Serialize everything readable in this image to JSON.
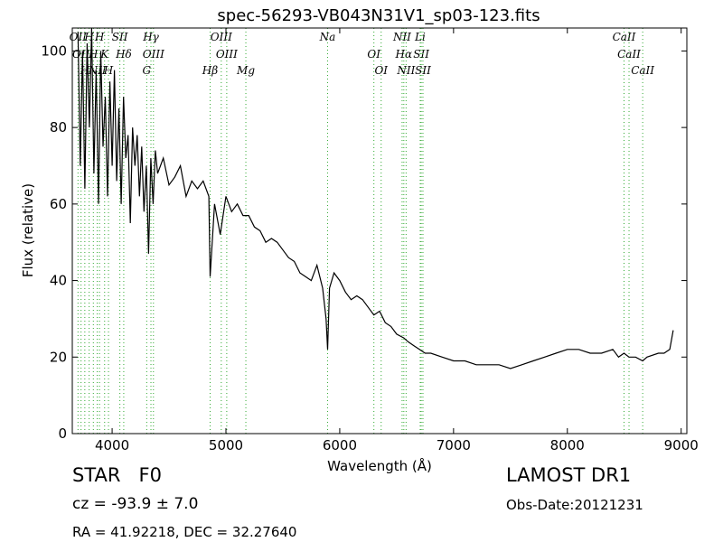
{
  "chart_data": {
    "type": "line",
    "title": "spec-56293-VB043N31V1_sp03-123.fits",
    "xlabel": "Wavelength (Å)",
    "ylabel": "Flux (relative)",
    "xlim": [
      3650,
      9050
    ],
    "ylim": [
      0,
      106
    ],
    "xticks": [
      4000,
      5000,
      6000,
      7000,
      8000,
      9000
    ],
    "yticks": [
      0,
      20,
      40,
      60,
      80,
      100
    ],
    "grid": false,
    "series": [
      {
        "color": "#000000",
        "x": [
          3700,
          3720,
          3740,
          3760,
          3780,
          3800,
          3820,
          3840,
          3860,
          3880,
          3900,
          3920,
          3940,
          3960,
          3980,
          4000,
          4020,
          4040,
          4060,
          4080,
          4100,
          4120,
          4140,
          4160,
          4180,
          4200,
          4220,
          4240,
          4260,
          4280,
          4300,
          4320,
          4340,
          4360,
          4380,
          4400,
          4450,
          4500,
          4550,
          4600,
          4650,
          4700,
          4750,
          4800,
          4850,
          4861,
          4900,
          4950,
          5000,
          5050,
          5100,
          5150,
          5200,
          5250,
          5300,
          5350,
          5400,
          5450,
          5500,
          5550,
          5600,
          5650,
          5700,
          5750,
          5800,
          5850,
          5880,
          5893,
          5910,
          5950,
          6000,
          6050,
          6100,
          6150,
          6200,
          6250,
          6300,
          6350,
          6400,
          6450,
          6500,
          6563,
          6600,
          6650,
          6700,
          6750,
          6800,
          6900,
          7000,
          7100,
          7200,
          7300,
          7400,
          7500,
          7600,
          7700,
          7800,
          7900,
          8000,
          8100,
          8200,
          8300,
          8400,
          8450,
          8498,
          8542,
          8600,
          8662,
          8700,
          8800,
          8850,
          8900,
          8930
        ],
        "values": [
          105,
          70,
          100,
          64,
          102,
          80,
          106,
          68,
          95,
          60,
          100,
          75,
          88,
          62,
          92,
          70,
          95,
          66,
          85,
          60,
          88,
          72,
          78,
          55,
          80,
          70,
          78,
          62,
          75,
          58,
          70,
          47,
          72,
          60,
          74,
          68,
          72,
          65,
          67,
          70,
          62,
          66,
          64,
          66,
          62,
          41,
          60,
          52,
          62,
          58,
          60,
          57,
          57,
          54,
          53,
          50,
          51,
          50,
          48,
          46,
          45,
          42,
          41,
          40,
          44,
          38,
          30,
          22,
          38,
          42,
          40,
          37,
          35,
          36,
          35,
          33,
          31,
          32,
          29,
          28,
          26,
          25,
          24,
          23,
          22,
          21,
          21,
          20,
          19,
          19,
          18,
          18,
          18,
          17,
          18,
          19,
          20,
          21,
          22,
          22,
          21,
          21,
          22,
          20,
          21,
          20,
          20,
          19,
          20,
          21,
          21,
          22,
          27
        ]
      }
    ],
    "line_markers": [
      {
        "x": 3700,
        "label": "OII"
      },
      {
        "x": 3727,
        "label": "OII"
      },
      {
        "x": 3760,
        "label": "H"
      },
      {
        "x": 3798,
        "label": "H"
      },
      {
        "x": 3835,
        "label": "H"
      },
      {
        "x": 3869,
        "label": "NII"
      },
      {
        "x": 3889,
        "label": "H"
      },
      {
        "x": 3934,
        "label": "K"
      },
      {
        "x": 3968,
        "label": "H"
      },
      {
        "x": 4068,
        "label": "SII"
      },
      {
        "x": 4102,
        "label": "Hδ"
      },
      {
        "x": 4304,
        "label": "G"
      },
      {
        "x": 4341,
        "label": "Hγ"
      },
      {
        "x": 4363,
        "label": "OIII"
      },
      {
        "x": 4861,
        "label": "Hβ"
      },
      {
        "x": 4959,
        "label": "OIII"
      },
      {
        "x": 5007,
        "label": "OIII"
      },
      {
        "x": 5175,
        "label": "Mg"
      },
      {
        "x": 5893,
        "label": "Na"
      },
      {
        "x": 6300,
        "label": "OI"
      },
      {
        "x": 6364,
        "label": "OI"
      },
      {
        "x": 6548,
        "label": "NII"
      },
      {
        "x": 6563,
        "label": "Hα"
      },
      {
        "x": 6583,
        "label": "NII"
      },
      {
        "x": 6707,
        "label": "Li"
      },
      {
        "x": 6716,
        "label": "SII"
      },
      {
        "x": 6731,
        "label": "SII"
      },
      {
        "x": 8498,
        "label": "CaII"
      },
      {
        "x": 8542,
        "label": "CaII"
      },
      {
        "x": 8662,
        "label": "CaII"
      }
    ]
  },
  "info": {
    "class_label": "STAR   F0",
    "redshift": "cz = -93.9 ± 7.0",
    "coords": "RA = 41.92218, DEC = 32.27640",
    "survey": "LAMOST DR1",
    "obs_date": "Obs-Date:20121231"
  }
}
